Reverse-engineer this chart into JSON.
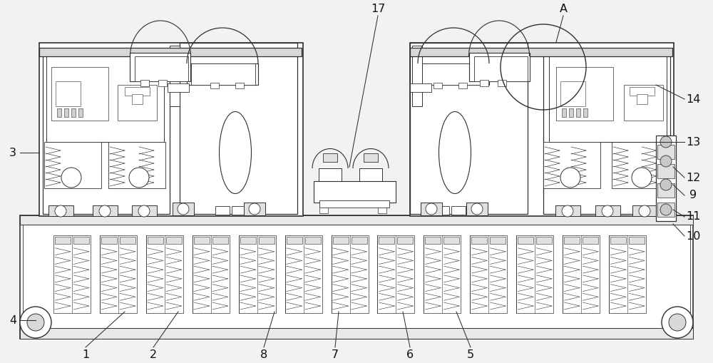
{
  "bg_color": "#f2f2f2",
  "line_color": "#303030",
  "fill_color": "#ffffff",
  "lw": 0.8
}
